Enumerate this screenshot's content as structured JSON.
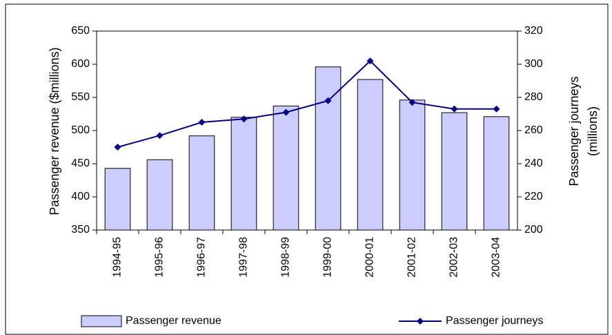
{
  "chart_data": {
    "type": "bar-line",
    "categories": [
      "1994-95",
      "1995-96",
      "1996-97",
      "1997-98",
      "1998-99",
      "1999-00",
      "2000-01",
      "2001-02",
      "2002-03",
      "2003-04"
    ],
    "series": [
      {
        "name": "Passenger revenue",
        "type": "bar",
        "color": "#ccccff",
        "values": [
          443,
          456,
          492,
          520,
          537,
          596,
          577,
          546,
          527,
          521
        ]
      },
      {
        "name": "Passenger journeys",
        "type": "line",
        "axis": "y2",
        "color": "#000080",
        "values": [
          250,
          257,
          265,
          267,
          271,
          278,
          302,
          277,
          273,
          273
        ]
      }
    ],
    "ylabel": "Passenger revenue ($millions)",
    "y2label": [
      "Passenger journeys",
      "(millions)"
    ],
    "ylim": [
      350,
      650
    ],
    "yticks": [
      350,
      400,
      450,
      500,
      550,
      600,
      650
    ],
    "y2lim": [
      200,
      320
    ],
    "y2ticks": [
      200,
      220,
      240,
      260,
      280,
      300,
      320
    ]
  }
}
